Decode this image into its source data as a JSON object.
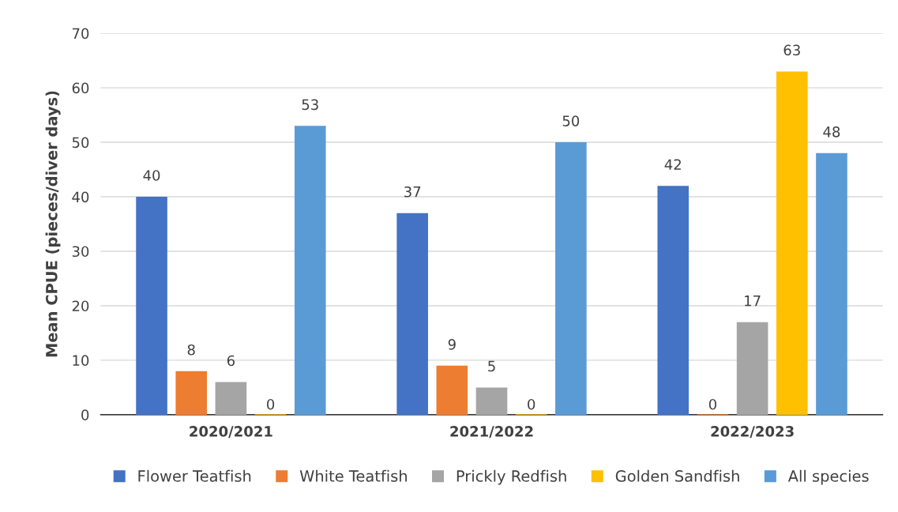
{
  "chart_data": {
    "type": "bar",
    "ylabel": "Mean CPUE (pieces/diver days)",
    "categories": [
      "2020/2021",
      "2021/2022",
      "2022/2023"
    ],
    "series": [
      {
        "name": "Flower Teatfish",
        "color": "#4472c4",
        "values": [
          40,
          37,
          42
        ]
      },
      {
        "name": "White Teatfish",
        "color": "#ed7d31",
        "values": [
          8,
          9,
          0
        ]
      },
      {
        "name": "Prickly Redfish",
        "color": "#a5a5a5",
        "values": [
          6,
          5,
          17
        ]
      },
      {
        "name": "Golden Sandfish",
        "color": "#ffc000",
        "values": [
          0,
          0,
          63
        ]
      },
      {
        "name": "All species",
        "color": "#5b9bd5",
        "values": [
          53,
          50,
          48
        ]
      }
    ],
    "ylim": [
      0,
      70
    ],
    "yticks": [
      0,
      10,
      20,
      30,
      40,
      50,
      60,
      70
    ],
    "grid": "y",
    "legend": "bottom",
    "data_labels": true
  }
}
